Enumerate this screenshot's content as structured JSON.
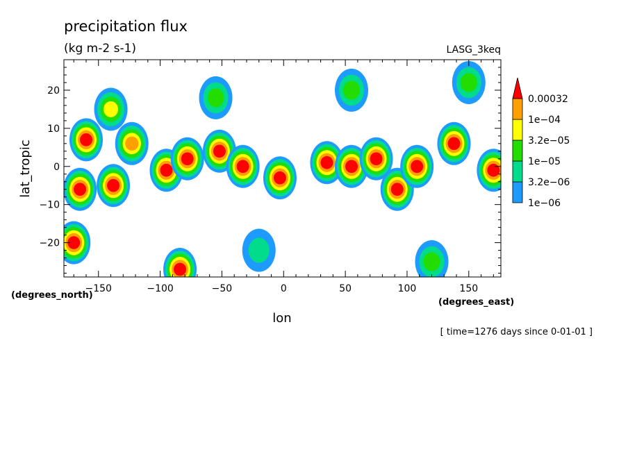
{
  "chart_data": {
    "type": "heatmap",
    "title": "precipitation flux",
    "units": "(kg m-2 s-1)",
    "dataset": "LASG_3keq",
    "xlabel": "lon",
    "ylabel": "lat_tropic",
    "x_units": "(degrees_east)",
    "y_units": "(degrees_north)",
    "time_label": "[ time=1276 days since 0-01-01 ]",
    "xlim": [
      -178,
      176
    ],
    "ylim": [
      -29,
      28
    ],
    "x_ticks": [
      -150,
      -100,
      -50,
      0,
      50,
      100,
      150
    ],
    "x_tick_labels": [
      "−150",
      "−100",
      "−50",
      "0",
      "50",
      "100",
      "150"
    ],
    "y_ticks": [
      20,
      10,
      0,
      -10,
      -20
    ],
    "y_tick_labels": [
      "20",
      "10",
      "0",
      "−10",
      "−20"
    ],
    "colorbar": {
      "levels": [
        1e-06,
        3.2e-06,
        1e-05,
        3.2e-05,
        0.0001,
        0.00032
      ],
      "labels": [
        "1e−06",
        "3.2e−06",
        "1e−05",
        "3.2e−05",
        "1e−04",
        "0.00032"
      ],
      "colors": [
        "#1e9bff",
        "#00dc8c",
        "#23dc00",
        "#ffff00",
        "#ffa000",
        "#ff0000"
      ]
    },
    "cells": [
      {
        "lon": -160,
        "lat": 7,
        "value": 0.00035
      },
      {
        "lon": -165,
        "lat": -6,
        "value": 0.00035
      },
      {
        "lon": -138,
        "lat": -5,
        "value": 0.00035
      },
      {
        "lon": -123,
        "lat": 6,
        "value": 0.0003
      },
      {
        "lon": -95,
        "lat": -1,
        "value": 0.00035
      },
      {
        "lon": -78,
        "lat": 2,
        "value": 0.00035
      },
      {
        "lon": -52,
        "lat": 4,
        "value": 0.00035
      },
      {
        "lon": -33,
        "lat": 0,
        "value": 0.00035
      },
      {
        "lon": -3,
        "lat": -3,
        "value": 0.0004
      },
      {
        "lon": 35,
        "lat": 1,
        "value": 0.0004
      },
      {
        "lon": 55,
        "lat": 0,
        "value": 0.00035
      },
      {
        "lon": 75,
        "lat": 2,
        "value": 0.0004
      },
      {
        "lon": 92,
        "lat": -6,
        "value": 0.00035
      },
      {
        "lon": 108,
        "lat": 0,
        "value": 0.00035
      },
      {
        "lon": 138,
        "lat": 6,
        "value": 0.0004
      },
      {
        "lon": 170,
        "lat": -1,
        "value": 0.00035
      },
      {
        "lon": -170,
        "lat": -20,
        "value": 0.00035
      },
      {
        "lon": -84,
        "lat": -27,
        "value": 0.00035
      },
      {
        "lon": -140,
        "lat": 15,
        "value": 4e-05
      },
      {
        "lon": -55,
        "lat": 18,
        "value": 2e-05
      },
      {
        "lon": 55,
        "lat": 20,
        "value": 3e-05
      },
      {
        "lon": 150,
        "lat": 22,
        "value": 2e-05
      },
      {
        "lon": 120,
        "lat": -25,
        "value": 1.5e-05
      },
      {
        "lon": -20,
        "lat": -22,
        "value": 8e-06
      }
    ]
  }
}
